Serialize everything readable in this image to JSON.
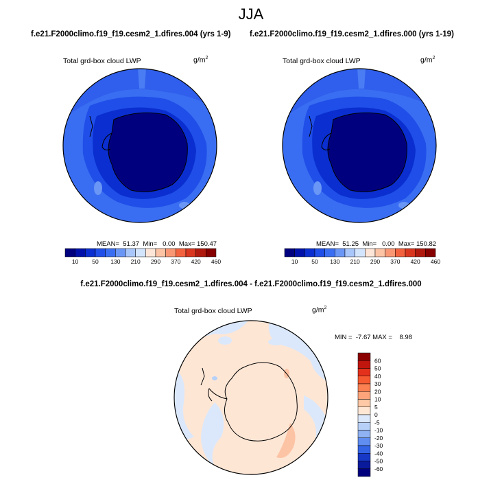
{
  "season": "JJA",
  "panels": [
    {
      "case_title": "f.e21.F2000climo.f19_f19.cesm2_1.dfires.004 (yrs 1-9)",
      "variable": "Total grd-box cloud LWP",
      "units_base": "g/m",
      "units_exp": "2",
      "stats": "MEAN=  51.37  Min=   0.00  Max= 150.47"
    },
    {
      "case_title": "f.e21.F2000climo.f19_f19.cesm2_1.dfires.000 (yrs 1-19)",
      "variable": "Total grd-box cloud LWP",
      "units_base": "g/m",
      "units_exp": "2",
      "stats": "MEAN=  51.25  Min=   0.00  Max= 150.82"
    }
  ],
  "abs_colorbar": {
    "labels": [
      "10",
      "50",
      "130",
      "210",
      "290",
      "370",
      "420",
      "460"
    ],
    "colors": [
      "#00007f",
      "#0010a8",
      "#0a2ecf",
      "#1f4ee8",
      "#3a6ef2",
      "#6a96f6",
      "#a9c6fb",
      "#d3e4fd",
      "#fde6d8",
      "#fcc3a4",
      "#f99774",
      "#f2623f",
      "#d9361f",
      "#b01a0e",
      "#860000"
    ]
  },
  "difference": {
    "title": "f.e21.F2000climo.f19_f19.cesm2_1.dfires.004 - f.e21.F2000climo.f19_f19.cesm2_1.dfires.000",
    "variable": "Total grd-box cloud LWP",
    "units_base": "g/m",
    "units_exp": "2",
    "stats": "MIN =  -7.67 MAX =    8.98"
  },
  "diff_colorbar": {
    "labels": [
      "60",
      "50",
      "40",
      "30",
      "20",
      "10",
      "5",
      "0",
      "-5",
      "-10",
      "-20",
      "-30",
      "-40",
      "-50",
      "-60"
    ],
    "colors": [
      "#8b0000",
      "#c0160e",
      "#e3311b",
      "#f55a30",
      "#fb8152",
      "#fda47a",
      "#fdc8a6",
      "#fee6d5",
      "#dbe8fb",
      "#b7d0f8",
      "#8fb2f3",
      "#5f8df0",
      "#3464e6",
      "#1738c6",
      "#0a1a9c",
      "#00007f"
    ]
  }
}
